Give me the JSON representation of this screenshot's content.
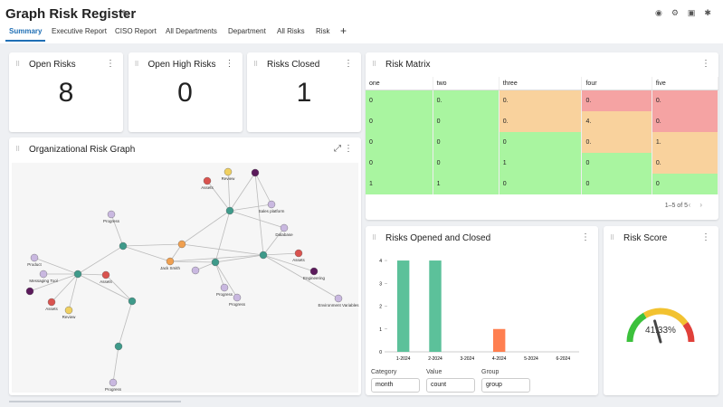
{
  "header": {
    "title": "Graph Risk Register",
    "tabs": [
      "Summary",
      "Executive Report",
      "CISO Report",
      "All Departments",
      "Department",
      "All Risks",
      "Risk"
    ]
  },
  "kpis": [
    {
      "title": "Open Risks",
      "value": 8
    },
    {
      "title": "Open High Risks",
      "value": 0
    },
    {
      "title": "Risks Closed",
      "value": 1
    }
  ],
  "risk_matrix": {
    "title": "Risk Matrix",
    "columns": [
      "one",
      "two",
      "three",
      "four",
      "five"
    ],
    "rows": [
      [
        "0",
        "0.",
        "0.",
        "0.",
        "0."
      ],
      [
        "0",
        "0",
        "0.",
        "4.",
        "0."
      ],
      [
        "0",
        "0",
        "0",
        "0.",
        "1."
      ],
      [
        "0",
        "0",
        "1",
        "0",
        "0."
      ],
      [
        "1",
        "1",
        "0",
        "0",
        "0"
      ]
    ],
    "colors": [
      [
        "#a9f5a0",
        "#a9f5a0",
        "#f9d29d",
        "#f5a3a3",
        "#f5a3a3"
      ],
      [
        "#a9f5a0",
        "#a9f5a0",
        "#f9d29d",
        "#f9d29d",
        "#f5a3a3"
      ],
      [
        "#a9f5a0",
        "#a9f5a0",
        "#a9f5a0",
        "#f9d29d",
        "#f9d29d"
      ],
      [
        "#a9f5a0",
        "#a9f5a0",
        "#a9f5a0",
        "#a9f5a0",
        "#f9d29d"
      ],
      [
        "#a9f5a0",
        "#a9f5a0",
        "#a9f5a0",
        "#a9f5a0",
        "#a9f5a0"
      ]
    ],
    "pagination": "1–5 of 5"
  },
  "graph": {
    "title": "Organizational Risk Graph",
    "nodes": [
      {
        "label": "Review",
        "color": "#f0d060"
      },
      {
        "label": "Assets",
        "color": "#d9534f"
      },
      {
        "color": "#5b1a5b"
      },
      {
        "label": "Sales platform",
        "color": "#c9b8e0"
      },
      {
        "color": "#3e9a8a"
      },
      {
        "label": "Progress",
        "color": "#c9b8e0"
      },
      {
        "label": "Database",
        "color": "#c9b8e0"
      },
      {
        "color": "#3e9a8a"
      },
      {
        "color": "#f0a050"
      },
      {
        "label": "Assets",
        "color": "#d9534f"
      },
      {
        "label": "Jack Smith",
        "color": "#f0a050"
      },
      {
        "color": "#3e9a8a"
      },
      {
        "color": "#3e9a8a"
      },
      {
        "color": "#c9b8e0"
      },
      {
        "label": "Progress",
        "color": "#c9b8e0"
      },
      {
        "label": "Progress",
        "color": "#c9b8e0"
      },
      {
        "label": "Engineering",
        "color": "#5b1a5b"
      },
      {
        "label": "Environment Variables",
        "color": "#c9b8e0"
      },
      {
        "color": "#3e9a8a"
      },
      {
        "label": "Messaging Tool",
        "color": "#c9b8e0"
      },
      {
        "label": "Product",
        "color": "#c9b8e0"
      },
      {
        "label": "Assets",
        "color": "#d9534f"
      },
      {
        "color": "#5b1a5b"
      },
      {
        "label": "Assets",
        "color": "#d9534f"
      },
      {
        "label": "Review",
        "color": "#f0d060"
      },
      {
        "color": "#3e9a8a"
      },
      {
        "color": "#3e9a8a"
      },
      {
        "label": "Progress",
        "color": "#c9b8e0"
      }
    ]
  },
  "opened_closed": {
    "title": "Risks Opened and Closed",
    "chart": {
      "type": "bar",
      "categories": [
        "1-2024",
        "2-2024",
        "3-2024",
        "4-2024",
        "5-2024",
        "6-2024"
      ],
      "values": [
        4,
        4,
        0,
        1,
        0,
        0
      ],
      "colors": [
        "#5cc19a",
        "#5cc19a",
        "#5cc19a",
        "#ff7f50",
        "#5cc19a",
        "#5cc19a"
      ],
      "ylim": [
        0,
        4.2
      ],
      "yticks": [
        0,
        1,
        2,
        3,
        4
      ]
    },
    "controls": [
      {
        "label": "Category",
        "value": "month"
      },
      {
        "label": "Value",
        "value": "count"
      },
      {
        "label": "Group",
        "value": "group"
      }
    ]
  },
  "risk_score": {
    "title": "Risk Score",
    "value": 41.33,
    "value_label": "41.33%"
  }
}
